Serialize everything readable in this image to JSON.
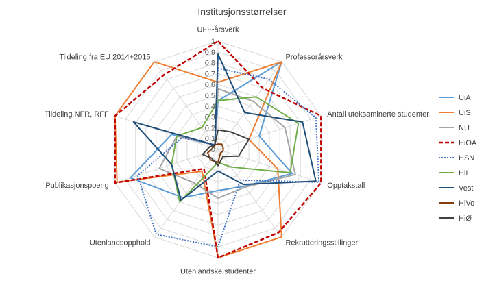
{
  "chart_data": {
    "type": "radar",
    "title": "Institusjonsstørrelser",
    "axes": [
      "UFF-årsverk",
      "Professorårsverk",
      "Antall uteksaminerte studenter",
      "Opptakstall",
      "Rekrutteringsstillinger",
      "Utenlandske studenter",
      "Utenlandsopphold",
      "Publikasjonspoeng",
      "Tildeling NFR, RFF",
      "Tildeling fra EU 2014+2015"
    ],
    "rlim": [
      0,
      1
    ],
    "ticks": [
      "0",
      "0,1",
      "0,2",
      "0,3",
      "0,4",
      "0,5",
      "0,6",
      "0,7",
      "0,8",
      "0,9",
      "1"
    ],
    "grid": true,
    "legend_position": "right",
    "series": [
      {
        "name": "UiA",
        "color": "#5B9BD5",
        "dash": "solid",
        "values": [
          0.45,
          1.0,
          0.4,
          0.72,
          0.42,
          0.38,
          0.55,
          0.85,
          0.45,
          0.05
        ]
      },
      {
        "name": "UiS",
        "color": "#ED7D31",
        "dash": "solid",
        "values": [
          0.62,
          1.0,
          0.3,
          0.58,
          1.0,
          1.0,
          0.25,
          0.98,
          1.0,
          1.0
        ]
      },
      {
        "name": "NU",
        "color": "#A5A5A5",
        "dash": "solid",
        "values": [
          0.56,
          0.55,
          0.65,
          0.75,
          0.43,
          0.45,
          0.38,
          0.57,
          0.4,
          0.05
        ]
      },
      {
        "name": "HiOA",
        "color": "#C00000",
        "dash": "dashed",
        "values": [
          1.0,
          0.7,
          1.0,
          1.0,
          0.95,
          1.0,
          0.22,
          1.0,
          1.0,
          0.85
        ]
      },
      {
        "name": "HSN",
        "color": "#4472C4",
        "dash": "dotted",
        "values": [
          0.75,
          0.8,
          0.95,
          0.98,
          0.35,
          0.9,
          0.97,
          0.78,
          0.35,
          0.05
        ]
      },
      {
        "name": "HiI",
        "color": "#70AD47",
        "dash": "solid",
        "values": [
          0.45,
          0.6,
          0.78,
          0.7,
          0.2,
          0.12,
          0.6,
          0.45,
          0.4,
          0.25
        ]
      },
      {
        "name": "Vest",
        "color": "#1F4E79",
        "dash": "solid",
        "values": [
          0.88,
          0.42,
          0.82,
          0.95,
          0.4,
          0.2,
          0.58,
          0.45,
          0.82,
          0.05
        ]
      },
      {
        "name": "HiVo",
        "color": "#843C0C",
        "dash": "solid",
        "values": [
          0.05,
          0.06,
          0.05,
          0.05,
          0.04,
          0.12,
          0.12,
          0.1,
          0.05,
          0.05
        ]
      },
      {
        "name": "HiØ",
        "color": "#404040",
        "dash": "solid",
        "values": [
          0.18,
          0.2,
          0.3,
          0.2,
          0.08,
          0.15,
          0.1,
          0.15,
          0.08,
          0.05
        ]
      }
    ]
  }
}
